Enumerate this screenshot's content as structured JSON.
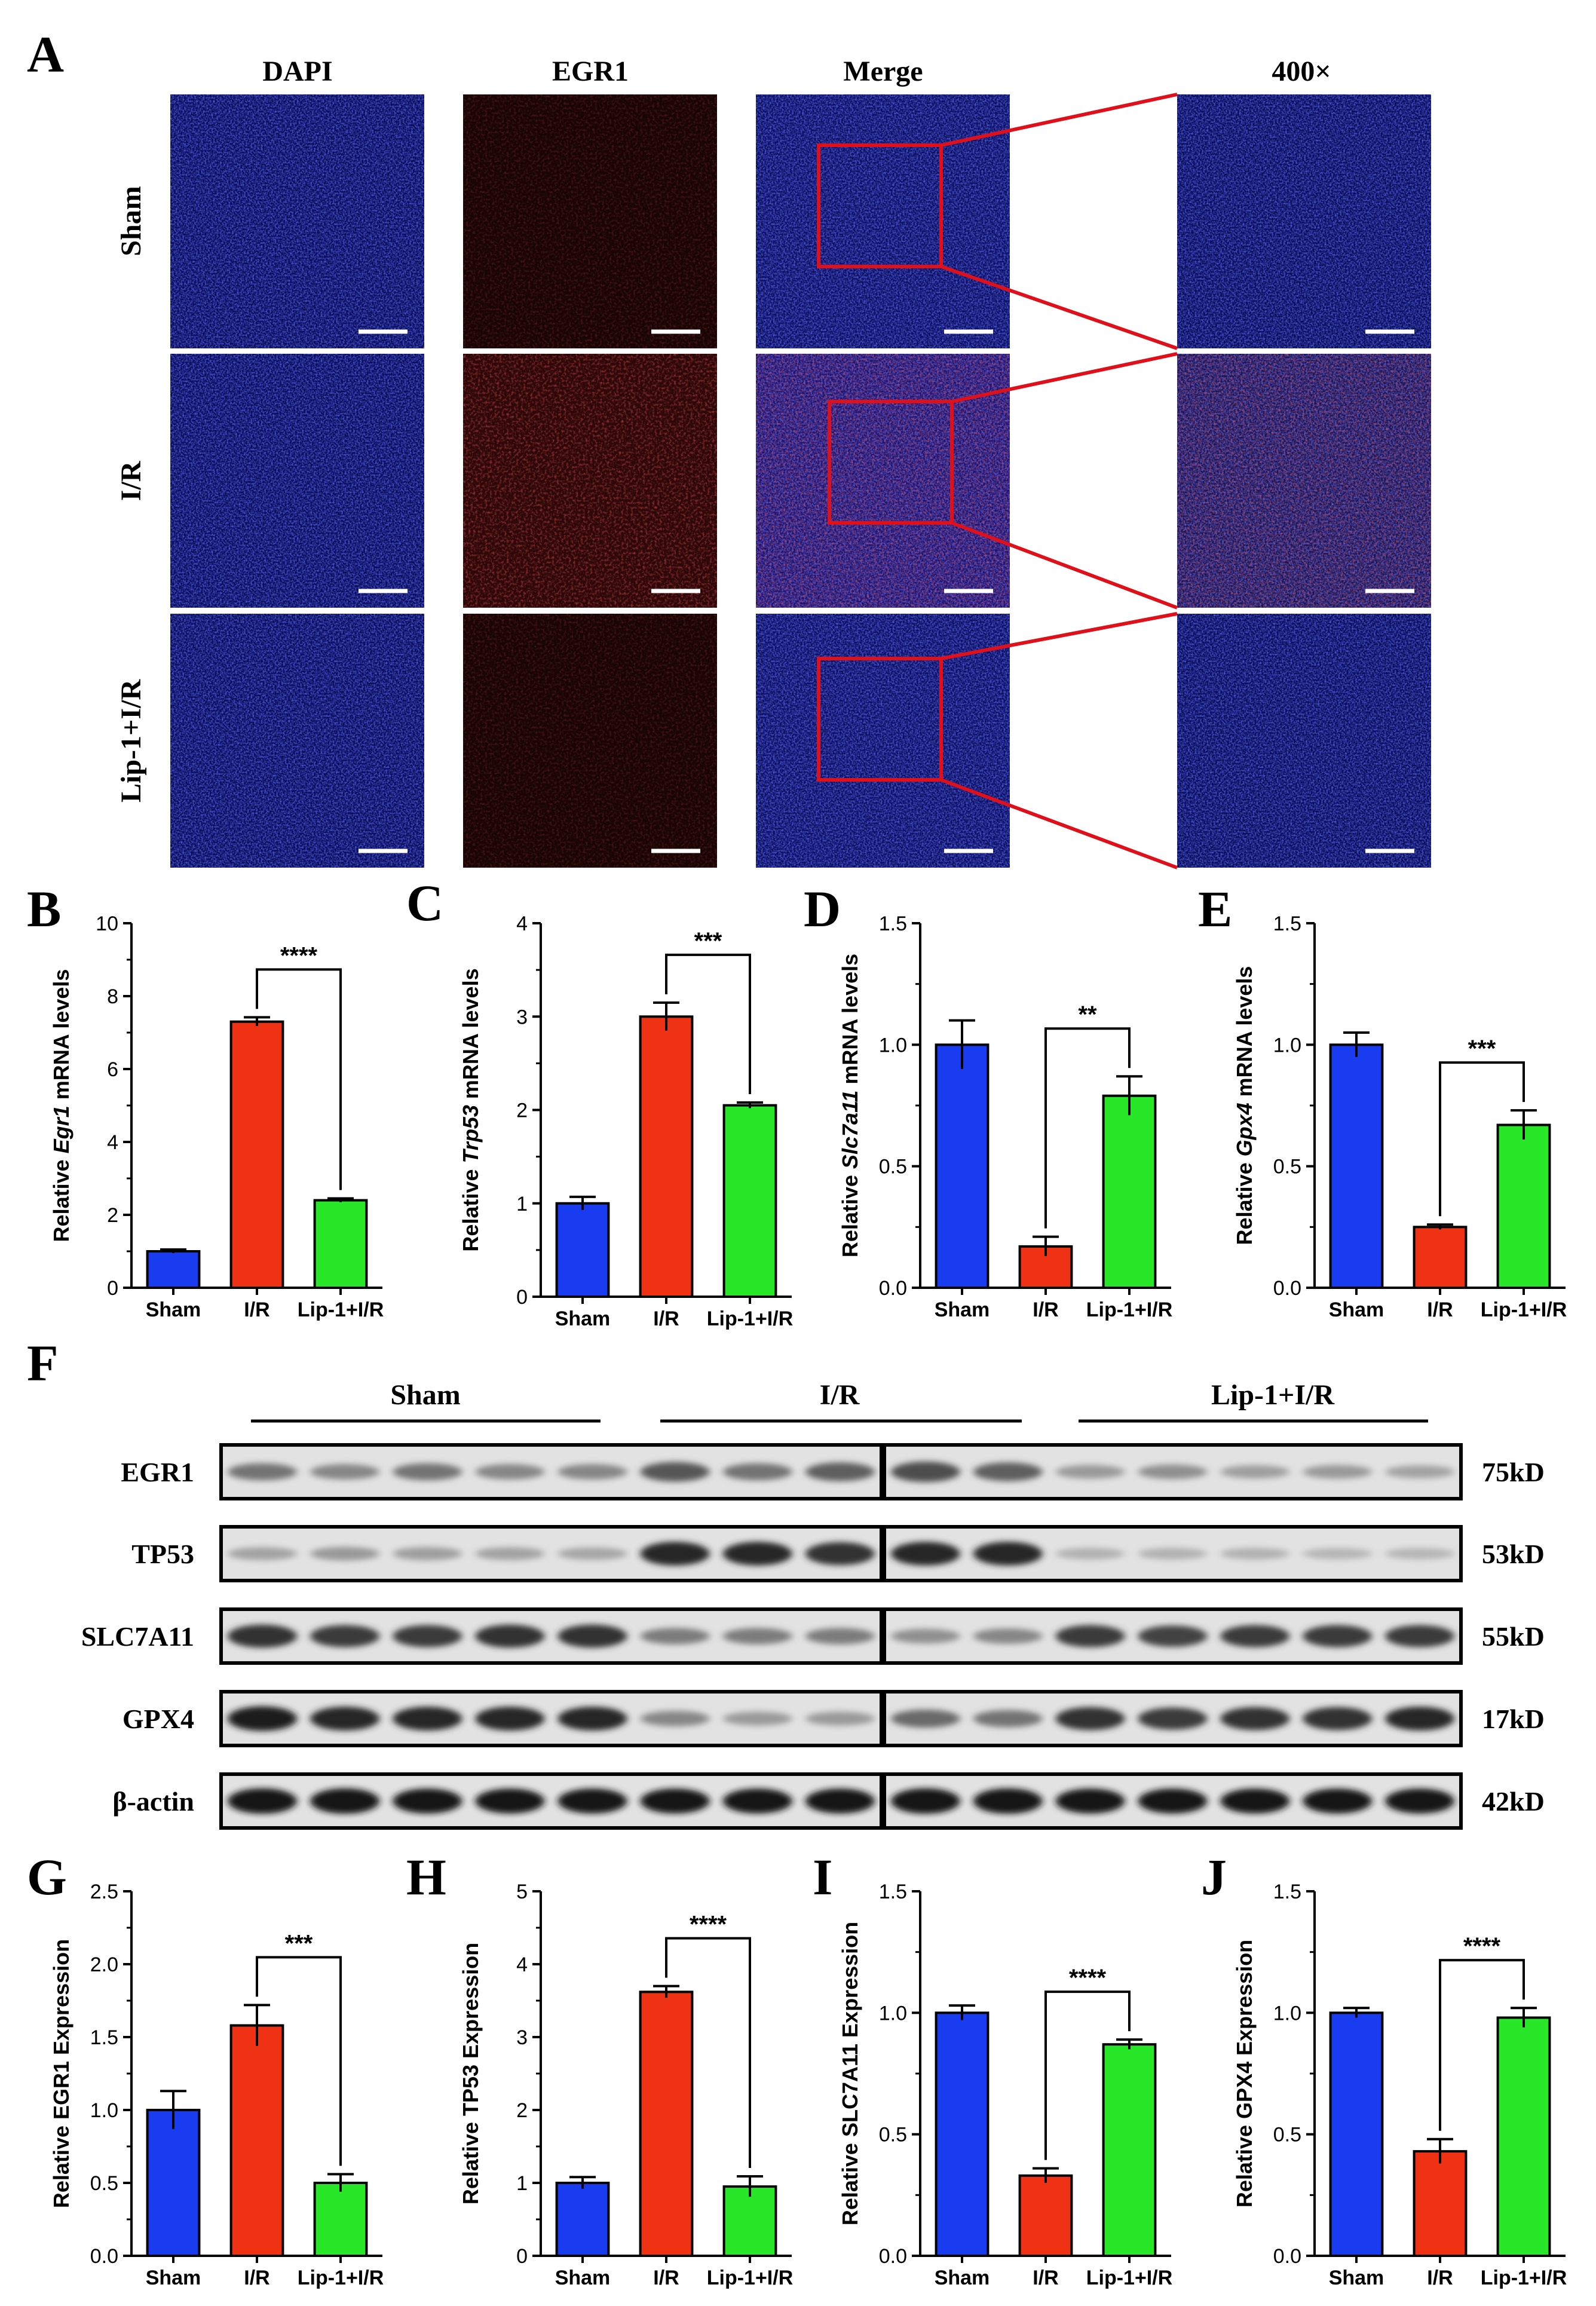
{
  "panel_labels": [
    "A",
    "B",
    "C",
    "D",
    "E",
    "F",
    "G",
    "H",
    "I",
    "J"
  ],
  "panelA": {
    "columns": [
      "DAPI",
      "EGR1",
      "Merge",
      "400×"
    ],
    "rows": [
      "Sham",
      "I/R",
      "Lip-1+I/R"
    ]
  },
  "western": {
    "groups": [
      "Sham",
      "I/R",
      "Lip-1+I/R"
    ],
    "lane_counts": [
      5,
      5,
      5
    ],
    "proteins": [
      {
        "name": "EGR1",
        "size": "75kD",
        "intensity": [
          0.45,
          0.35,
          0.45,
          0.35,
          0.35,
          0.6,
          0.45,
          0.55,
          0.65,
          0.55,
          0.25,
          0.3,
          0.22,
          0.25,
          0.2
        ]
      },
      {
        "name": "TP53",
        "size": "53kD",
        "intensity": [
          0.2,
          0.25,
          0.22,
          0.2,
          0.18,
          0.85,
          0.85,
          0.8,
          0.85,
          0.85,
          0.12,
          0.12,
          0.12,
          0.1,
          0.1
        ]
      },
      {
        "name": "SLC7A11",
        "size": "55kD",
        "intensity": [
          0.8,
          0.75,
          0.75,
          0.8,
          0.8,
          0.4,
          0.4,
          0.4,
          0.3,
          0.35,
          0.75,
          0.7,
          0.75,
          0.75,
          0.75
        ]
      },
      {
        "name": "GPX4",
        "size": "17kD",
        "intensity": [
          0.9,
          0.85,
          0.85,
          0.85,
          0.85,
          0.35,
          0.25,
          0.25,
          0.5,
          0.45,
          0.8,
          0.75,
          0.8,
          0.8,
          0.85
        ]
      },
      {
        "name": "β-actin",
        "size": "42kD",
        "intensity": [
          0.95,
          0.95,
          0.92,
          0.92,
          0.92,
          0.92,
          0.92,
          0.92,
          0.95,
          0.95,
          0.92,
          0.92,
          0.92,
          0.92,
          0.92
        ]
      }
    ]
  },
  "colors": {
    "sham": "#1a3cf0",
    "ir": "#f03214",
    "lip": "#28e628"
  },
  "chart_data": [
    {
      "id": "B",
      "type": "bar",
      "categories": [
        "Sham",
        "I/R",
        "Lip-1+I/R"
      ],
      "values": [
        1.0,
        7.3,
        2.4
      ],
      "errors": [
        0.05,
        0.12,
        0.05
      ],
      "ylabel_pre": "Relative ",
      "ylabel_it": "Egr1",
      "ylabel_post": " mRNA levels",
      "ylim": [
        0,
        10
      ],
      "yticks": [
        "0",
        "2",
        "4",
        "6",
        "8",
        "10"
      ],
      "sig": "****"
    },
    {
      "id": "C",
      "type": "bar",
      "categories": [
        "Sham",
        "I/R",
        "Lip-1+I/R"
      ],
      "values": [
        1.0,
        3.0,
        2.05
      ],
      "errors": [
        0.07,
        0.15,
        0.03
      ],
      "ylabel_pre": "Relative ",
      "ylabel_it": "Trp53",
      "ylabel_post": " mRNA levels",
      "ylim": [
        0,
        4
      ],
      "yticks": [
        "0",
        "1",
        "2",
        "3",
        "4"
      ],
      "sig": "***"
    },
    {
      "id": "D",
      "type": "bar",
      "categories": [
        "Sham",
        "I/R",
        "Lip-1+I/R"
      ],
      "values": [
        1.0,
        0.17,
        0.79
      ],
      "errors": [
        0.1,
        0.04,
        0.08
      ],
      "ylabel_pre": "Relative ",
      "ylabel_it": "Slc7a11",
      "ylabel_post": " mRNA levels",
      "ylim": [
        0,
        1.5
      ],
      "yticks": [
        "0.0",
        "0.5",
        "1.0",
        "1.5"
      ],
      "sig": "**"
    },
    {
      "id": "E",
      "type": "bar",
      "categories": [
        "Sham",
        "I/R",
        "Lip-1+I/R"
      ],
      "values": [
        1.0,
        0.25,
        0.67
      ],
      "errors": [
        0.05,
        0.01,
        0.06
      ],
      "ylabel_pre": "Relative ",
      "ylabel_it": "Gpx4",
      "ylabel_post": " mRNA levels",
      "ylim": [
        0,
        1.5
      ],
      "yticks": [
        "0.0",
        "0.5",
        "1.0",
        "1.5"
      ],
      "sig": "***"
    },
    {
      "id": "G",
      "type": "bar",
      "categories": [
        "Sham",
        "I/R",
        "Lip-1+I/R"
      ],
      "values": [
        1.0,
        1.58,
        0.5
      ],
      "errors": [
        0.13,
        0.14,
        0.06
      ],
      "ylabel_pre": "Relative EGR1 Expression",
      "ylabel_it": "",
      "ylabel_post": "",
      "ylim": [
        0,
        2.5
      ],
      "yticks": [
        "0.0",
        "0.5",
        "1.0",
        "1.5",
        "2.0",
        "2.5"
      ],
      "sig": "***"
    },
    {
      "id": "H",
      "type": "bar",
      "categories": [
        "Sham",
        "I/R",
        "Lip-1+I/R"
      ],
      "values": [
        1.0,
        3.62,
        0.95
      ],
      "errors": [
        0.08,
        0.08,
        0.14
      ],
      "ylabel_pre": "Relative TP53 Expression",
      "ylabel_it": "",
      "ylabel_post": "",
      "ylim": [
        0,
        5
      ],
      "yticks": [
        "0",
        "1",
        "2",
        "3",
        "4",
        "5"
      ],
      "sig": "****"
    },
    {
      "id": "I",
      "type": "bar",
      "categories": [
        "Sham",
        "I/R",
        "Lip-1+I/R"
      ],
      "values": [
        1.0,
        0.33,
        0.87
      ],
      "errors": [
        0.03,
        0.03,
        0.02
      ],
      "ylabel_pre": "Relative SLC7A11 Expression",
      "ylabel_it": "",
      "ylabel_post": "",
      "ylim": [
        0,
        1.5
      ],
      "yticks": [
        "0.0",
        "0.5",
        "1.0",
        "1.5"
      ],
      "sig": "****"
    },
    {
      "id": "J",
      "type": "bar",
      "categories": [
        "Sham",
        "I/R",
        "Lip-1+I/R"
      ],
      "values": [
        1.0,
        0.43,
        0.98
      ],
      "errors": [
        0.02,
        0.05,
        0.04
      ],
      "ylabel_pre": "Relative GPX4 Expression",
      "ylabel_it": "",
      "ylabel_post": "",
      "ylim": [
        0,
        1.5
      ],
      "yticks": [
        "0.0",
        "0.5",
        "1.0",
        "1.5"
      ],
      "sig": "****"
    }
  ]
}
